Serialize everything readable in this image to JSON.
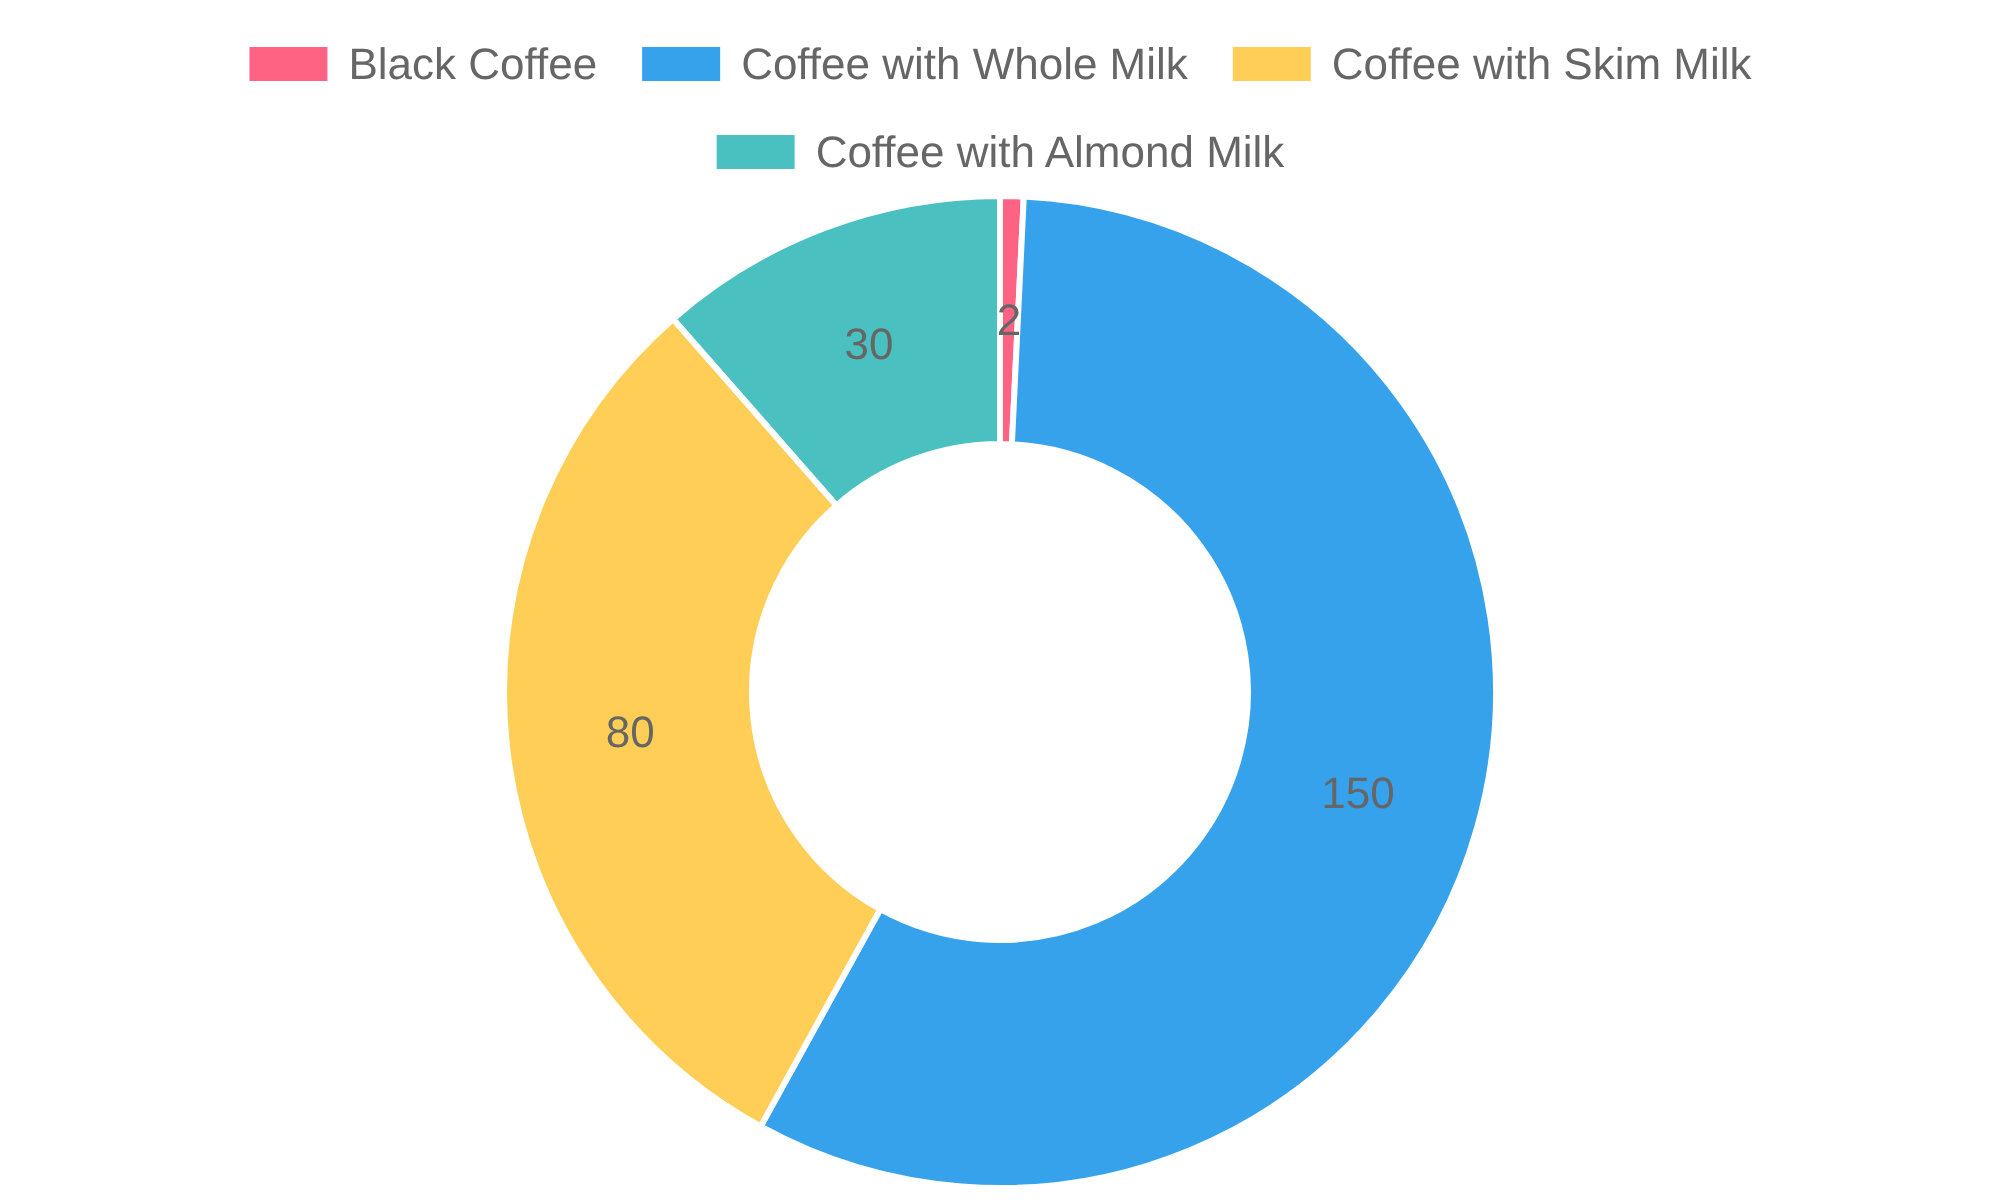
{
  "chart_data": {
    "type": "donut",
    "categories": [
      "Black Coffee",
      "Coffee with Whole Milk",
      "Coffee with Skim Milk",
      "Coffee with Almond Milk"
    ],
    "values": [
      2,
      150,
      80,
      30
    ],
    "colors": [
      "#ff6384",
      "#36a2eb",
      "#ffce56",
      "#4bc0c0"
    ],
    "data_labels": true,
    "legend": "top"
  }
}
